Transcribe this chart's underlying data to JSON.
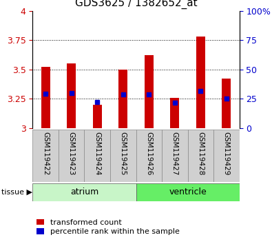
{
  "title": "GDS3625 / 1382652_at",
  "samples": [
    "GSM119422",
    "GSM119423",
    "GSM119424",
    "GSM119425",
    "GSM119426",
    "GSM119427",
    "GSM119428",
    "GSM119429"
  ],
  "red_values": [
    3.52,
    3.55,
    3.2,
    3.5,
    3.62,
    3.26,
    3.78,
    3.42
  ],
  "blue_values": [
    3.295,
    3.3,
    3.22,
    3.285,
    3.29,
    3.215,
    3.315,
    3.25
  ],
  "ymin": 3.0,
  "ymax": 4.0,
  "yticks": [
    3.0,
    3.25,
    3.5,
    3.75,
    4.0
  ],
  "ytick_labels_left": [
    "3",
    "3.25",
    "3.5",
    "3.75",
    "4"
  ],
  "ytick_labels_right": [
    "0",
    "25",
    "50",
    "75",
    "100%"
  ],
  "groups": [
    {
      "label": "atrium",
      "start": 0,
      "end": 3,
      "color": "#c8f5c8"
    },
    {
      "label": "ventricle",
      "start": 4,
      "end": 7,
      "color": "#66ee66"
    }
  ],
  "bar_color": "#cc0000",
  "marker_color": "#0000cc",
  "bar_width": 0.35,
  "marker_size": 5,
  "legend_items": [
    "transformed count",
    "percentile rank within the sample"
  ],
  "tissue_label": "tissue",
  "tick_label_color_left": "#cc0000",
  "tick_label_color_right": "#0000cc",
  "label_area_color": "#d0d0d0",
  "title_fontsize": 11
}
